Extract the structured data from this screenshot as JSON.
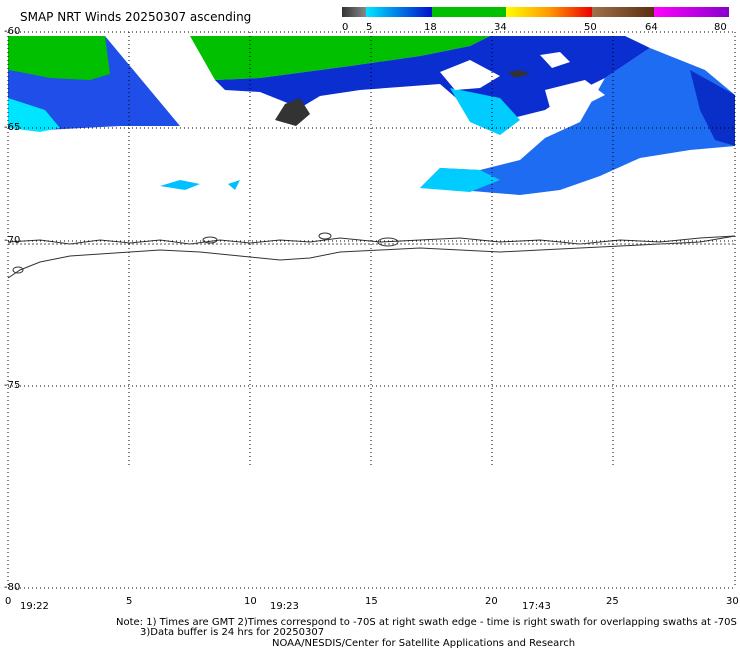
{
  "title": "SMAP NRT Winds 20250307 ascending",
  "legend": {
    "ticks": [
      "0",
      "5",
      "18",
      "34",
      "50",
      "64",
      "80"
    ],
    "segments": [
      {
        "from": 0,
        "to": 5,
        "colors": [
          "#333333",
          "#888888"
        ]
      },
      {
        "from": 5,
        "to": 18,
        "colors": [
          "#00e5ff",
          "#0010cc"
        ]
      },
      {
        "from": 18,
        "to": 34,
        "colors": [
          "#00c000",
          "#00c000"
        ]
      },
      {
        "from": 34,
        "to": 50,
        "colors": [
          "#ffff00",
          "#ff9900",
          "#ee0000"
        ]
      },
      {
        "from": 50,
        "to": 64,
        "colors": [
          "#a0704a",
          "#5a2e10"
        ]
      },
      {
        "from": 64,
        "to": 80,
        "colors": [
          "#ff00ff",
          "#8800cc"
        ]
      }
    ]
  },
  "axes": {
    "lat_labels": [
      "-60",
      "-65",
      "-70",
      "-75",
      "-80"
    ],
    "lon_labels": [
      "0",
      "5",
      "10",
      "15",
      "20",
      "25",
      "30"
    ],
    "time_labels": [
      "19:22",
      "19:23",
      "17:43"
    ],
    "grid": true,
    "lon_range": [
      0,
      30
    ],
    "lat_range": [
      -60,
      -80
    ]
  },
  "notes": {
    "line1": "Note: 1) Times are GMT 2)Times correspond to -70S at right swath edge - time is right swath for overlapping swaths at -70S",
    "line2": "3)Data buffer is 24 hrs for 20250307",
    "line3": "NOAA/NESDIS/Center for Satellite Applications and Research"
  },
  "colors": {
    "grid": "#000000",
    "green": "#00c000",
    "dark_blue": "#0010cc",
    "light_blue": "#00e5ff",
    "calm": "#333333"
  }
}
